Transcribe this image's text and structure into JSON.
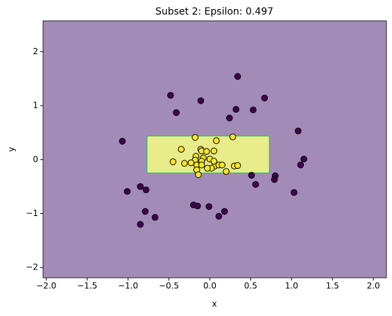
{
  "chart_data": {
    "type": "scatter",
    "title": "Subset 2: Epsilon: 0.497",
    "xlabel": "x",
    "ylabel": "y",
    "xlim": [
      -2.04,
      2.16
    ],
    "ylim": [
      -2.19,
      2.57
    ],
    "xticks": [
      {
        "value": -2.0,
        "label": "−2.0"
      },
      {
        "value": -1.5,
        "label": "−1.5"
      },
      {
        "value": -1.0,
        "label": "−1.0"
      },
      {
        "value": -0.5,
        "label": "−0.5"
      },
      {
        "value": 0,
        "label": "0.0"
      },
      {
        "value": 0.5,
        "label": "0.5"
      },
      {
        "value": 1.0,
        "label": "1.0"
      },
      {
        "value": 1.5,
        "label": "1.5"
      },
      {
        "value": 2.0,
        "label": "2.0"
      }
    ],
    "yticks": [
      {
        "value": -2,
        "label": "−2"
      },
      {
        "value": -1,
        "label": "−1"
      },
      0,
      1,
      2
    ],
    "background_color": "#a28bb7",
    "region": {
      "x": [
        -0.77,
        0.73
      ],
      "y": [
        -0.25,
        0.44
      ],
      "color": "#e8ec8a",
      "edge_color": "#35b779"
    },
    "series": [
      {
        "color": "#440154",
        "x": [
          0.34,
          -0.48,
          -0.11,
          -0.41,
          0.32,
          0.67,
          0.53,
          0.24,
          -1.07,
          1.08,
          1.11,
          1.15,
          0.51,
          0.56,
          0.8,
          0.79,
          1.03,
          -1.01,
          -0.85,
          -0.78,
          -0.79,
          -0.2,
          -0.15,
          -0.01,
          0.18,
          0.11,
          -0.67,
          -0.85
        ],
        "y": [
          1.54,
          1.19,
          1.09,
          0.87,
          0.93,
          1.14,
          0.92,
          0.77,
          0.34,
          0.53,
          -0.1,
          0.01,
          -0.29,
          -0.46,
          -0.3,
          -0.37,
          -0.61,
          -0.59,
          -0.5,
          -0.56,
          -0.96,
          -0.84,
          -0.86,
          -0.87,
          -0.96,
          -1.05,
          -1.07,
          -1.2
        ]
      },
      {
        "color": "#fde725",
        "x": [
          -0.18,
          0.28,
          -0.35,
          -0.11,
          -0.1,
          0.08,
          -0.04,
          0.05,
          -0.17,
          -0.18,
          -0.08,
          0.0,
          -0.1,
          -0.31,
          -0.23,
          -0.45,
          -0.16,
          -0.1,
          0.06,
          0.11,
          0.15,
          0.02,
          -0.03,
          -0.16,
          0.2,
          0.3,
          0.34,
          -0.14,
          0.05
        ],
        "y": [
          0.41,
          0.42,
          0.19,
          0.19,
          0.16,
          0.35,
          0.15,
          0.16,
          0.06,
          -0.01,
          0.03,
          0.01,
          -0.03,
          -0.07,
          -0.06,
          -0.04,
          -0.1,
          -0.1,
          -0.12,
          -0.1,
          -0.1,
          -0.16,
          -0.16,
          -0.19,
          -0.22,
          -0.12,
          -0.11,
          -0.28,
          -0.03
        ]
      }
    ]
  }
}
